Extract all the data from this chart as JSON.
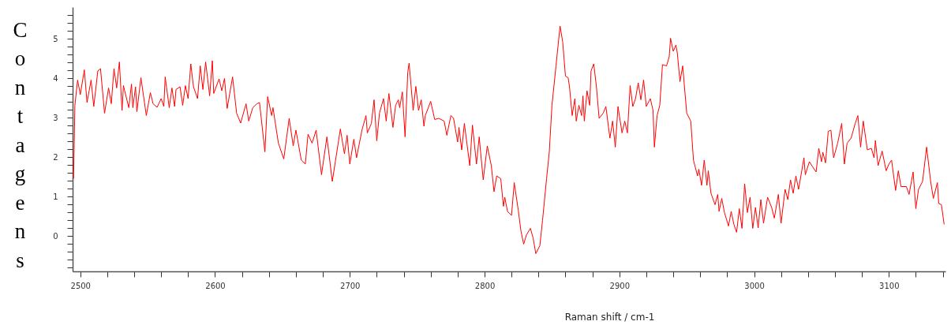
{
  "chart_data": {
    "type": "line",
    "xlabel": "Raman shift / cm-1",
    "ylabel": "Contagens",
    "grid": false,
    "xlim": [
      2494.3,
      3142
    ],
    "ylim": [
      -0.9,
      5.8
    ],
    "xticks": [
      2500,
      {
        "value": 2520,
        "label": null
      },
      {
        "value": 2540,
        "label": null
      },
      {
        "value": 2560,
        "label": null
      },
      {
        "value": 2580,
        "label": null
      },
      2600,
      {
        "value": 2620,
        "label": null
      },
      {
        "value": 2640,
        "label": null
      },
      {
        "value": 2660,
        "label": null
      },
      {
        "value": 2680,
        "label": null
      },
      2700,
      {
        "value": 2720,
        "label": null
      },
      {
        "value": 2740,
        "label": null
      },
      {
        "value": 2760,
        "label": null
      },
      {
        "value": 2780,
        "label": null
      },
      2800,
      {
        "value": 2820,
        "label": null
      },
      {
        "value": 2840,
        "label": null
      },
      {
        "value": 2860,
        "label": null
      },
      {
        "value": 2880,
        "label": null
      },
      2900,
      {
        "value": 2920,
        "label": null
      },
      {
        "value": 2940,
        "label": null
      },
      {
        "value": 2960,
        "label": null
      },
      {
        "value": 2980,
        "label": null
      },
      3000,
      {
        "value": 3020,
        "label": null
      },
      {
        "value": 3040,
        "label": null
      },
      {
        "value": 3060,
        "label": null
      },
      {
        "value": 3080,
        "label": null
      },
      3100,
      {
        "value": 3120,
        "label": null
      },
      {
        "value": 3140,
        "label": null
      }
    ],
    "yticks": [
      {
        "value": -0.8,
        "label": null
      },
      {
        "value": -0.6,
        "label": null
      },
      {
        "value": -0.4,
        "label": null
      },
      {
        "value": -0.2,
        "label": null
      },
      0,
      {
        "value": 0.2,
        "label": null
      },
      {
        "value": 0.4,
        "label": null
      },
      {
        "value": 0.6,
        "label": null
      },
      {
        "value": 0.8,
        "label": null
      },
      1,
      {
        "value": 1.2,
        "label": null
      },
      {
        "value": 1.4,
        "label": null
      },
      {
        "value": 1.6,
        "label": null
      },
      {
        "value": 1.8,
        "label": null
      },
      2,
      {
        "value": 2.2,
        "label": null
      },
      {
        "value": 2.4,
        "label": null
      },
      {
        "value": 2.6,
        "label": null
      },
      {
        "value": 2.8,
        "label": null
      },
      3,
      {
        "value": 3.2,
        "label": null
      },
      {
        "value": 3.4,
        "label": null
      },
      {
        "value": 3.6,
        "label": null
      },
      {
        "value": 3.8,
        "label": null
      },
      4,
      {
        "value": 4.2,
        "label": null
      },
      {
        "value": 4.4,
        "label": null
      },
      {
        "value": 4.6,
        "label": null
      },
      {
        "value": 4.8,
        "label": null
      },
      5,
      {
        "value": 5.2,
        "label": null
      },
      {
        "value": 5.4,
        "label": null
      },
      {
        "value": 5.6,
        "label": null
      }
    ],
    "series": [
      {
        "color": "#ff0000",
        "x": [
          2495,
          2496,
          2498,
          2500,
          2503,
          2505,
          2508,
          2510,
          2513,
          2515,
          2518,
          2521,
          2523,
          2525,
          2527,
          2529,
          2531,
          2532,
          2536,
          2538,
          2539,
          2541,
          2542,
          2545,
          2549,
          2552,
          2554,
          2557,
          2560,
          2562,
          2563,
          2566,
          2568,
          2570,
          2571,
          2574,
          2576,
          2578,
          2580,
          2582,
          2584,
          2587,
          2589,
          2591,
          2593,
          2596,
          2598,
          2599,
          2603,
          2605,
          2607,
          2609,
          2613,
          2616,
          2619,
          2623,
          2625,
          2628,
          2631,
          2633,
          2637,
          2639,
          2642,
          2643,
          2647,
          2651,
          2655,
          2658,
          2660,
          2664,
          2667,
          2669,
          2672,
          2675,
          2679,
          2683,
          2687,
          2693,
          2696,
          2698,
          2700,
          2703,
          2705,
          2709,
          2712,
          2713,
          2716,
          2718,
          2720,
          2722,
          2725,
          2727,
          2729,
          2732,
          2734,
          2736,
          2737,
          2739,
          2741,
          2743,
          2744,
          2747,
          2749,
          2751,
          2753,
          2755,
          2756,
          2760,
          2763,
          2766,
          2770,
          2772,
          2775,
          2777,
          2780,
          2781,
          2783,
          2785,
          2789,
          2791,
          2794,
          2796,
          2799,
          2802,
          2805,
          2807,
          2809,
          2812,
          2814,
          2815,
          2817,
          2820,
          2822,
          2825,
          2827,
          2829,
          2831,
          2834,
          2836,
          2838,
          2841,
          2843,
          2846,
          2848,
          2850,
          2853,
          2856,
          2858,
          2860,
          2862,
          2863,
          2865,
          2867,
          2868,
          2870,
          2872,
          2873,
          2874,
          2876,
          2878,
          2879,
          2881,
          2883,
          2885,
          2888,
          2890,
          2893,
          2895,
          2897,
          2899,
          2902,
          2904,
          2906,
          2908,
          2910,
          2912,
          2914,
          2916,
          2918,
          2920,
          2923,
          2925,
          2926,
          2928,
          2930,
          2932,
          2935,
          2937,
          2938,
          2940,
          2942,
          2943,
          2945,
          2947,
          2950,
          2953,
          2955,
          2958,
          2959,
          2961,
          2963,
          2965,
          2966,
          2968,
          2971,
          2973,
          2974,
          2976,
          2978,
          2981,
          2983,
          2985,
          2987,
          2989,
          2991,
          2993,
          2995,
          2997,
          2999,
          3001,
          3003,
          3005,
          3007,
          3010,
          3013,
          3015,
          3018,
          3020,
          3023,
          3025,
          3027,
          3029,
          3031,
          3033,
          3037,
          3038,
          3041,
          3044,
          3046,
          3048,
          3050,
          3051,
          3053,
          3055,
          3057,
          3059,
          3062,
          3065,
          3067,
          3069,
          3072,
          3075,
          3077,
          3079,
          3081,
          3084,
          3087,
          3089,
          3090,
          3092,
          3095,
          3098,
          3100,
          3102,
          3105,
          3107,
          3109,
          3113,
          3115,
          3118,
          3120,
          3122,
          3125,
          3128,
          3131,
          3133,
          3136,
          3137,
          3139,
          3141
        ],
        "values": [
          1.45,
          3.31,
          3.95,
          3.58,
          4.21,
          3.38,
          3.95,
          3.28,
          4.18,
          4.24,
          3.11,
          3.75,
          3.35,
          4.24,
          3.75,
          4.41,
          3.18,
          3.81,
          3.25,
          3.85,
          3.25,
          3.78,
          3.15,
          4.01,
          3.05,
          3.63,
          3.35,
          3.26,
          3.48,
          3.28,
          4.03,
          3.25,
          3.75,
          3.28,
          3.71,
          3.78,
          3.31,
          3.81,
          3.48,
          4.36,
          3.78,
          3.48,
          4.31,
          3.71,
          4.41,
          3.55,
          4.44,
          3.61,
          3.98,
          3.68,
          3.99,
          3.23,
          4.03,
          3.11,
          2.86,
          3.35,
          2.91,
          3.25,
          3.35,
          3.38,
          2.13,
          3.53,
          3.05,
          3.25,
          2.35,
          1.95,
          2.98,
          2.28,
          2.68,
          1.92,
          1.82,
          2.58,
          2.35,
          2.68,
          1.55,
          2.51,
          1.38,
          2.71,
          2.08,
          2.55,
          1.82,
          2.45,
          1.98,
          2.68,
          3.05,
          2.61,
          2.85,
          3.45,
          2.41,
          3.11,
          3.48,
          2.91,
          3.61,
          2.75,
          3.31,
          3.45,
          3.25,
          3.65,
          2.51,
          4.15,
          4.38,
          3.18,
          3.79,
          3.18,
          3.45,
          2.78,
          3.05,
          3.41,
          2.95,
          2.98,
          2.91,
          2.55,
          3.05,
          2.98,
          2.38,
          2.75,
          2.18,
          2.85,
          1.78,
          2.81,
          1.82,
          2.51,
          1.42,
          2.28,
          1.78,
          1.12,
          1.52,
          1.45,
          0.75,
          0.98,
          0.62,
          0.52,
          1.35,
          0.65,
          0.12,
          -0.21,
          0.02,
          0.19,
          -0.05,
          -0.45,
          -0.25,
          0.39,
          1.45,
          2.12,
          3.31,
          4.31,
          5.32,
          4.91,
          4.05,
          4.01,
          3.78,
          3.05,
          3.48,
          2.91,
          3.31,
          3.05,
          3.55,
          2.91,
          3.68,
          3.31,
          4.18,
          4.36,
          3.78,
          2.98,
          3.11,
          3.28,
          2.48,
          2.91,
          2.25,
          3.28,
          2.61,
          2.91,
          2.61,
          3.81,
          3.28,
          3.48,
          3.88,
          3.45,
          3.95,
          3.28,
          3.48,
          3.18,
          2.25,
          3.05,
          3.31,
          4.34,
          4.31,
          4.54,
          5.01,
          4.68,
          4.84,
          4.64,
          3.91,
          4.31,
          3.11,
          2.91,
          1.92,
          1.52,
          1.69,
          1.28,
          1.92,
          1.28,
          1.65,
          1.08,
          0.79,
          1.05,
          0.62,
          0.95,
          0.59,
          0.25,
          0.62,
          0.29,
          0.09,
          0.69,
          0.19,
          1.32,
          0.59,
          0.98,
          0.19,
          0.72,
          0.2,
          0.92,
          0.32,
          0.98,
          0.72,
          0.45,
          1.05,
          0.32,
          1.18,
          0.92,
          1.42,
          1.08,
          1.52,
          1.18,
          1.98,
          1.55,
          1.88,
          1.72,
          1.62,
          2.22,
          1.88,
          2.12,
          1.85,
          2.65,
          2.68,
          1.98,
          2.35,
          2.85,
          1.82,
          2.35,
          2.48,
          2.85,
          3.05,
          2.25,
          2.91,
          2.18,
          2.22,
          1.98,
          2.42,
          1.78,
          2.15,
          1.65,
          1.82,
          1.92,
          1.15,
          1.65,
          1.25,
          1.25,
          1.05,
          1.62,
          0.69,
          1.18,
          1.38,
          2.25,
          1.38,
          0.95,
          1.35,
          0.82,
          0.79,
          0.29
        ]
      }
    ]
  }
}
